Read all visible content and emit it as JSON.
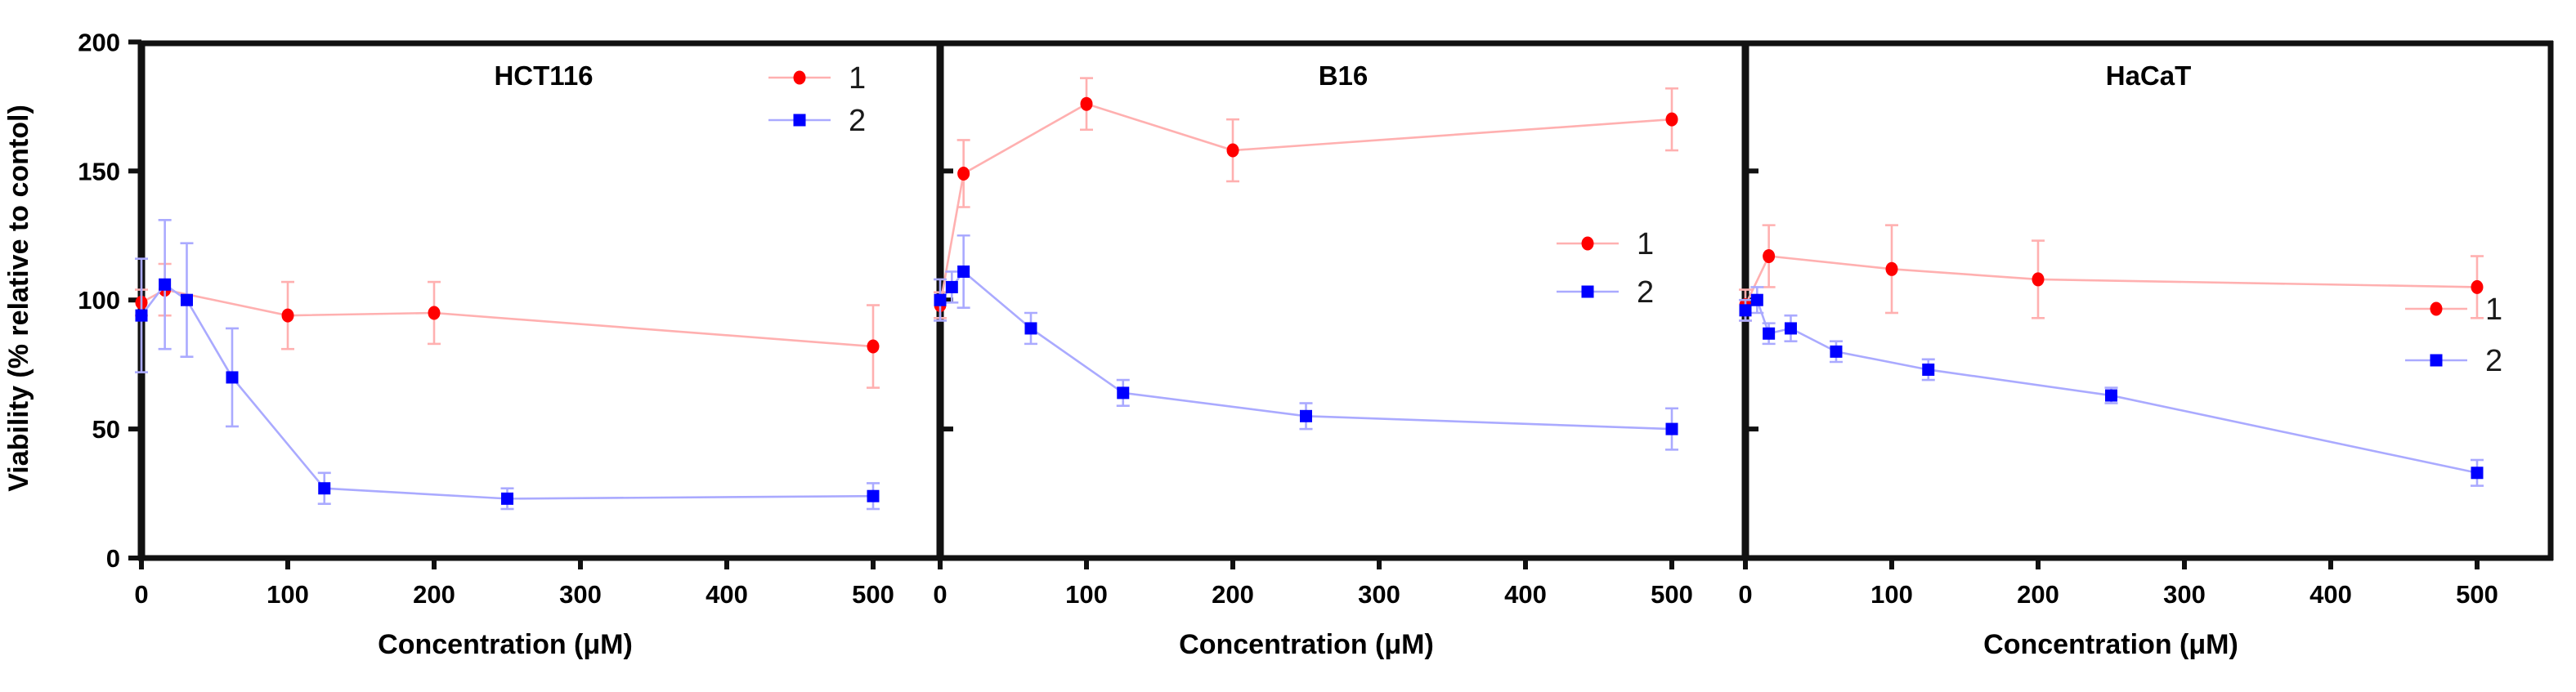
{
  "chart_data": {
    "type": "line",
    "description": "Three-panel cell viability dose-response chart with error bars",
    "background": "#ffffff",
    "axis_color": "#000000",
    "y_axis": {
      "label": "Viability (% relative to contol)",
      "ticks": [
        0,
        50,
        100,
        150,
        200
      ],
      "range": [
        0,
        200
      ],
      "minor_ticks_unlabeled_panels": [
        50,
        100,
        150
      ]
    },
    "x_axis_label": "Concentration  (μM)",
    "x_ticks": [
      0,
      100,
      200,
      300,
      400,
      500
    ],
    "x_range": [
      0,
      550
    ],
    "legend_entries": [
      "1",
      "2"
    ],
    "series_colors": {
      "1": "#ff0000",
      "2": "#0000ff"
    },
    "line_colors": {
      "1": "#ffb0b0",
      "2": "#aaaaff"
    },
    "panels": [
      {
        "title": "HCT116",
        "x_axis_label": "Concentration  (μM)",
        "legend": [
          {
            "label": "1"
          },
          {
            "label": "2"
          }
        ],
        "series": [
          {
            "name": "1",
            "marker": "circle",
            "color": "#ff0000",
            "line": "#ffb0b0",
            "points": [
              {
                "x": 0,
                "y": 99,
                "e": 5
              },
              {
                "x": 16,
                "y": 104,
                "e": 10
              },
              {
                "x": 100,
                "y": 94,
                "e": 13
              },
              {
                "x": 200,
                "y": 95,
                "e": 12
              },
              {
                "x": 500,
                "y": 82,
                "e": 16
              }
            ]
          },
          {
            "name": "2",
            "marker": "square",
            "color": "#0000ff",
            "line": "#aaaaff",
            "points": [
              {
                "x": 0,
                "y": 94,
                "e": 22
              },
              {
                "x": 16,
                "y": 106,
                "e": 25
              },
              {
                "x": 31,
                "y": 100,
                "e": 22
              },
              {
                "x": 62,
                "y": 70,
                "e": 19
              },
              {
                "x": 125,
                "y": 27,
                "e": 6
              },
              {
                "x": 250,
                "y": 23,
                "e": 4
              },
              {
                "x": 500,
                "y": 24,
                "e": 5
              }
            ]
          }
        ]
      },
      {
        "title": "B16",
        "x_axis_label": "Concentration  (μM)",
        "legend": [
          {
            "label": "1"
          },
          {
            "label": "2"
          }
        ],
        "series": [
          {
            "name": "1",
            "marker": "circle",
            "color": "#ff0000",
            "line": "#ffb0b0",
            "points": [
              {
                "x": 0,
                "y": 98,
                "e": 5
              },
              {
                "x": 16,
                "y": 149,
                "e": 13
              },
              {
                "x": 100,
                "y": 176,
                "e": 10
              },
              {
                "x": 200,
                "y": 158,
                "e": 12
              },
              {
                "x": 500,
                "y": 170,
                "e": 12
              }
            ]
          },
          {
            "name": "2",
            "marker": "square",
            "color": "#0000ff",
            "line": "#aaaaff",
            "points": [
              {
                "x": 0,
                "y": 100,
                "e": 8
              },
              {
                "x": 8,
                "y": 105,
                "e": 6
              },
              {
                "x": 16,
                "y": 111,
                "e": 14
              },
              {
                "x": 62,
                "y": 89,
                "e": 6
              },
              {
                "x": 125,
                "y": 64,
                "e": 5
              },
              {
                "x": 250,
                "y": 55,
                "e": 5
              },
              {
                "x": 500,
                "y": 50,
                "e": 8
              }
            ]
          }
        ]
      },
      {
        "title": "HaCaT",
        "x_axis_label": "Concentration  (μM)",
        "legend": [
          {
            "label": "1"
          },
          {
            "label": "2"
          }
        ],
        "series": [
          {
            "name": "1",
            "marker": "circle",
            "color": "#ff0000",
            "line": "#ffb0b0",
            "points": [
              {
                "x": 0,
                "y": 98,
                "e": 6
              },
              {
                "x": 16,
                "y": 117,
                "e": 12
              },
              {
                "x": 100,
                "y": 112,
                "e": 17
              },
              {
                "x": 200,
                "y": 108,
                "e": 15
              },
              {
                "x": 500,
                "y": 105,
                "e": 12
              }
            ]
          },
          {
            "name": "2",
            "marker": "square",
            "color": "#0000ff",
            "line": "#aaaaff",
            "points": [
              {
                "x": 0,
                "y": 96,
                "e": 4
              },
              {
                "x": 8,
                "y": 100,
                "e": 5
              },
              {
                "x": 16,
                "y": 87,
                "e": 4
              },
              {
                "x": 31,
                "y": 89,
                "e": 5
              },
              {
                "x": 62,
                "y": 80,
                "e": 4
              },
              {
                "x": 125,
                "y": 73,
                "e": 4
              },
              {
                "x": 250,
                "y": 63,
                "e": 3
              },
              {
                "x": 500,
                "y": 33,
                "e": 5
              }
            ]
          }
        ]
      }
    ]
  }
}
